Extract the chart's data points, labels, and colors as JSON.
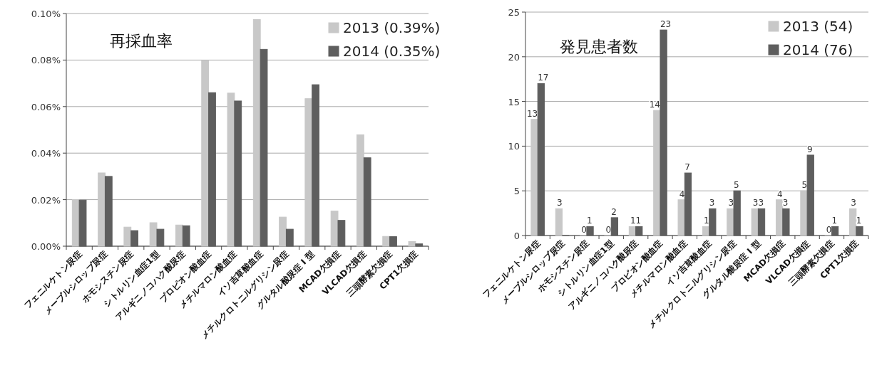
{
  "chart_data": [
    {
      "type": "bar",
      "title": "再採血率",
      "categories": [
        "フェニルケトン尿症",
        "メープルシロップ尿症",
        "ホモシスチン尿症",
        "シトルリン血症1型",
        "アルギニノコハク酸尿症",
        "プロピオン酸血症",
        "メチルマロン酸血症",
        "イソ吉草酸血症",
        "メチルクロトニルグリシン尿症",
        "グルタル酸尿症 I 型",
        "MCAD欠損症",
        "VLCAD欠損症",
        "三頭酵素欠損症",
        "CPT1欠損症"
      ],
      "series": [
        {
          "name": "2013 (0.39%)",
          "color": "#c8c8c8",
          "values": [
            0.02,
            0.0315,
            0.0082,
            0.0101,
            0.0091,
            0.0798,
            0.0658,
            0.0974,
            0.0125,
            0.0634,
            0.0151,
            0.0479,
            0.0042,
            0.002
          ]
        },
        {
          "name": "2014 (0.35%)",
          "color": "#5e5e5e",
          "values": [
            0.0198,
            0.03,
            0.0067,
            0.0073,
            0.0088,
            0.066,
            0.0624,
            0.0846,
            0.0073,
            0.0694,
            0.0111,
            0.038,
            0.0041,
            0.001
          ]
        }
      ],
      "ylim": [
        0,
        0.1
      ],
      "yticks": [
        {
          "value": 0,
          "label": "0.00%"
        },
        {
          "value": 0.02,
          "label": "0.02%"
        },
        {
          "value": 0.04,
          "label": "0.04%"
        },
        {
          "value": 0.06,
          "label": "0.06%"
        },
        {
          "value": 0.08,
          "label": "0.08%"
        },
        {
          "value": 0.1,
          "label": "0.10%"
        }
      ],
      "grid": "y",
      "legend": "top right"
    },
    {
      "type": "bar",
      "title": "発見患者数",
      "categories": [
        "フェニルケトン尿症",
        "メープルシロップ尿症",
        "ホモシスチン尿症",
        "シトルリン血症1型",
        "アルギニノコハク酸尿症",
        "プロピオン酸血症",
        "メチルマロン酸血症",
        "イソ吉草酸血症",
        "メチルクロトニルグリシン尿症",
        "グルタル酸尿症 I 型",
        "MCAD欠損症",
        "VLCAD欠損症",
        "三頭酵素欠損症",
        "CPT1欠損症"
      ],
      "series": [
        {
          "name": "2013 (54)",
          "color": "#c8c8c8",
          "values": [
            13,
            3,
            0,
            0,
            1,
            14,
            4,
            1,
            3,
            3,
            4,
            5,
            0,
            3
          ],
          "value_labels": [
            "13",
            "3",
            "0",
            "0",
            "1",
            "14",
            "4",
            "1",
            "3",
            "3",
            "4",
            "5",
            "0",
            "3"
          ]
        },
        {
          "name": "2014 (76)",
          "color": "#5e5e5e",
          "values": [
            17,
            0,
            1,
            2,
            1,
            23,
            7,
            3,
            5,
            3,
            3,
            9,
            1,
            1
          ],
          "value_labels": [
            "17",
            null,
            "1",
            "2",
            "1",
            "23",
            "7",
            "3",
            "5",
            "3",
            "3",
            "9",
            "1",
            "1"
          ]
        }
      ],
      "ylim": [
        0,
        25
      ],
      "yticks": [
        0,
        5,
        10,
        15,
        20,
        25
      ],
      "grid": "y",
      "legend": "top right"
    }
  ]
}
